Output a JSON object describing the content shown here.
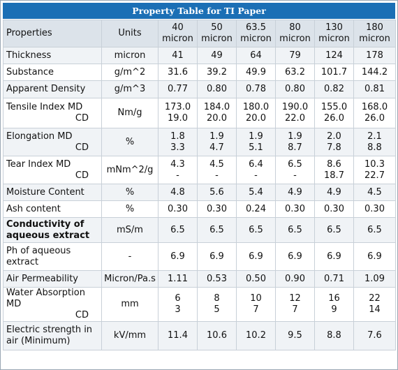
{
  "title": "Property Table for TI Paper",
  "header": {
    "property": "Properties",
    "units": "Units",
    "columns": [
      {
        "value": "40",
        "unit": "micron"
      },
      {
        "value": "50",
        "unit": "micron"
      },
      {
        "value": "63.5",
        "unit": "micron"
      },
      {
        "value": "80",
        "unit": "micron"
      },
      {
        "value": "130",
        "unit": "micron"
      },
      {
        "value": "180",
        "unit": "micron"
      }
    ]
  },
  "rows": [
    {
      "property": "Thickness",
      "unit": "micron",
      "values": [
        "41",
        "49",
        "64",
        "79",
        "124",
        "178"
      ]
    },
    {
      "property": "Substance",
      "unit": "g/m^2",
      "values": [
        "31.6",
        "39.2",
        "49.9",
        "63.2",
        "101.7",
        "144.2"
      ]
    },
    {
      "property": "Apparent Density",
      "unit": "g/m^3",
      "values": [
        "0.77",
        "0.80",
        "0.78",
        "0.80",
        "0.82",
        "0.81"
      ]
    },
    {
      "property": "Tensile Index MD",
      "property_sub": "CD",
      "unit": "Nm/g",
      "values": [
        "173.0",
        "184.0",
        "180.0",
        "190.0",
        "155.0",
        "168.0"
      ],
      "values_sub": [
        "19.0",
        "20.0",
        "20.0",
        "22.0",
        "26.0",
        "26.0"
      ]
    },
    {
      "property": "Elongation MD",
      "property_sub": "CD",
      "unit": "%",
      "values": [
        "1.8",
        "1.9",
        "1.9",
        "1.9",
        "2.0",
        "2.1"
      ],
      "values_sub": [
        "3.3",
        "4.7",
        "5.1",
        "8.7",
        "7.8",
        "8.8"
      ]
    },
    {
      "property": "Tear Index MD",
      "property_sub": "CD",
      "unit": "mNm^2/g",
      "values": [
        "4.3",
        "4.5",
        "6.4",
        "6.5",
        "8.6",
        "10.3"
      ],
      "values_sub": [
        "-",
        "-",
        "-",
        "-",
        "18.7",
        "22.7"
      ]
    },
    {
      "property": "Moisture Content",
      "unit": "%",
      "values": [
        "4.8",
        "5.6",
        "5.4",
        "4.9",
        "4.9",
        "4.5"
      ]
    },
    {
      "property": "Ash content",
      "unit": "%",
      "values": [
        "0.30",
        "0.30",
        "0.24",
        "0.30",
        "0.30",
        "0.30"
      ]
    },
    {
      "property": "Conductivity of aqueous extract",
      "unit": "mS/m",
      "values": [
        "6.5",
        "6.5",
        "6.5",
        "6.5",
        "6.5",
        "6.5"
      ]
    },
    {
      "property": "Ph of aqueous extract",
      "unit": "-",
      "values": [
        "6.9",
        "6.9",
        "6.9",
        "6.9",
        "6.9",
        "6.9"
      ]
    },
    {
      "property": "Air Permeability",
      "unit": "Micron/Pa.s",
      "values": [
        "1.11",
        "0.53",
        "0.50",
        "0.90",
        "0.71",
        "1.09"
      ]
    },
    {
      "property": "Water Absorption MD",
      "property_sub": "CD",
      "unit": "mm",
      "values": [
        "6",
        "8",
        "10",
        "12",
        "16",
        "22"
      ],
      "values_sub": [
        "3",
        "5",
        "7",
        "7",
        "9",
        "14"
      ]
    },
    {
      "property": "Electric strength in air (Minimum)",
      "unit": "kV/mm",
      "values": [
        "11.4",
        "10.6",
        "10.2",
        "9.5",
        "8.8",
        "7.6"
      ]
    }
  ],
  "colors": {
    "title_bg": "#1b6fb5",
    "header_bg": "#dce3ea",
    "odd_row_bg": "#f0f3f6",
    "border": "#c8d0d8"
  }
}
